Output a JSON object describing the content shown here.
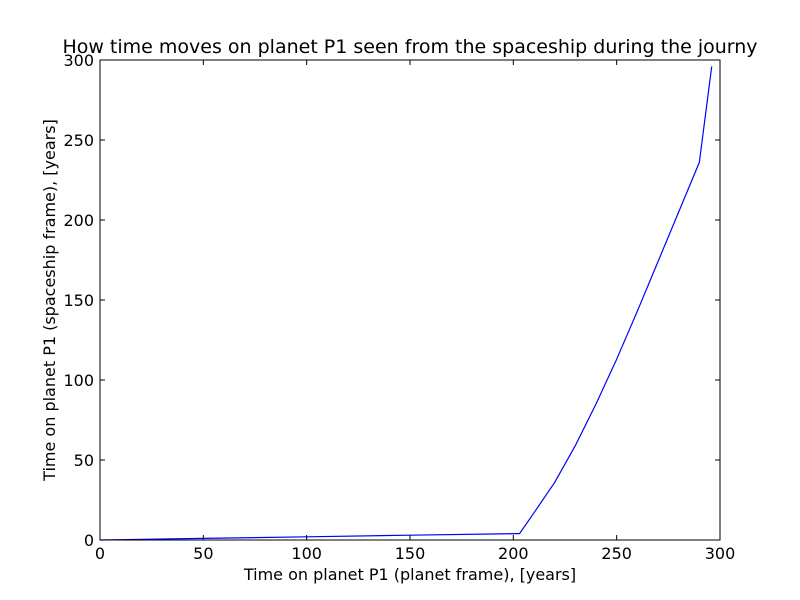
{
  "chart_data": {
    "type": "line",
    "title": "How time moves on planet P1 seen from the spaceship during the journy",
    "xlabel": "Time on planet P1 (planet frame), [years]",
    "ylabel": "Time on planet P1 (spaceship frame), [years]",
    "xlim": [
      0,
      300
    ],
    "ylim": [
      0,
      300
    ],
    "xticks": [
      0,
      50,
      100,
      150,
      200,
      250,
      300
    ],
    "yticks": [
      0,
      50,
      100,
      150,
      200,
      250,
      300
    ],
    "xtick_labels": [
      "0",
      "50",
      "100",
      "150",
      "200",
      "250",
      "300"
    ],
    "ytick_labels": [
      "0",
      "50",
      "100",
      "150",
      "200",
      "250",
      "300"
    ],
    "grid": false,
    "series": [
      {
        "color": "#0000ff",
        "x": [
          0,
          50,
          100,
          150,
          202,
          203,
          210,
          220,
          230,
          240,
          250,
          260,
          270,
          280,
          290,
          296
        ],
        "y": [
          0,
          1,
          2,
          3,
          4,
          4,
          17,
          36,
          59,
          85,
          113,
          143,
          174,
          205,
          236,
          296
        ]
      }
    ]
  }
}
